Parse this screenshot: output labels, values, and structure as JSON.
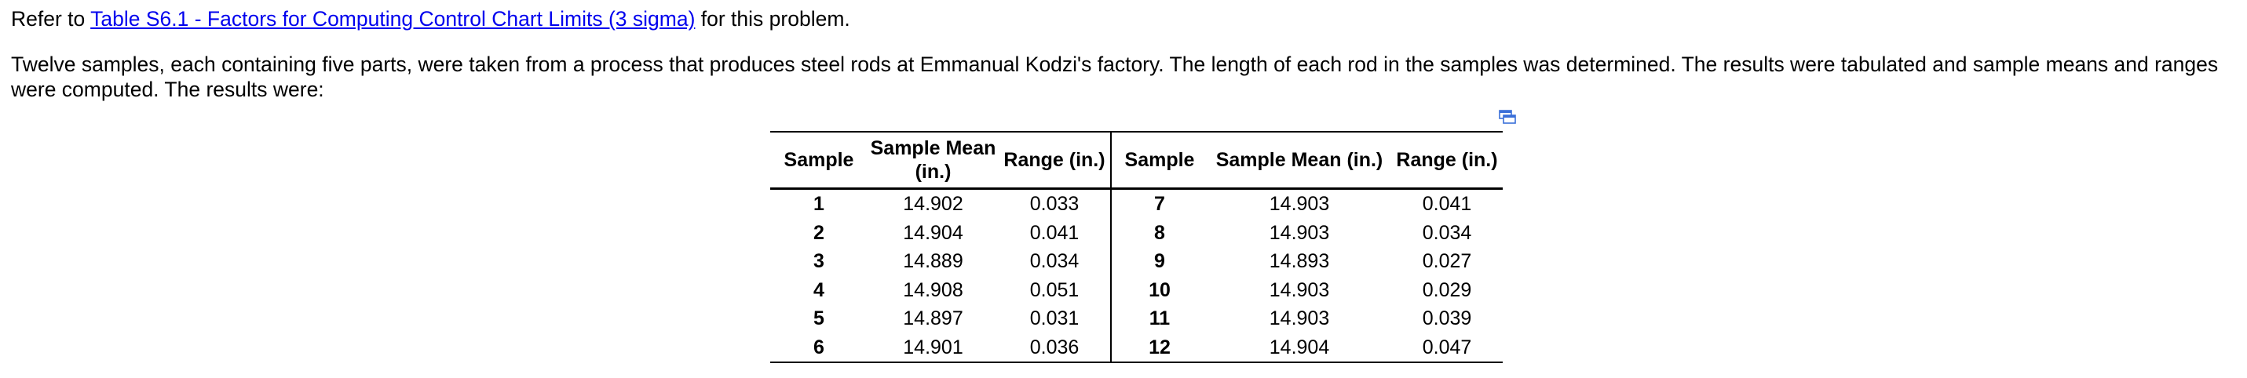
{
  "intro": {
    "prefix": "Refer to ",
    "link_text": "Table S6.1 - Factors for Computing Control Chart Limits (3 sigma)",
    "suffix": " for this problem."
  },
  "problem_text": "Twelve samples, each containing five parts, were taken from a process that produces steel rods at Emmanual Kodzi's factory. The length of each rod in the samples was determined. The results were tabulated and sample means and ranges were computed. The results were:",
  "popup_icon": "popup-window-icon",
  "table": {
    "headers": [
      "Sample",
      "Sample Mean (in.)",
      "Range (in.)",
      "Sample",
      "Sample Mean (in.)",
      "Range (in.)"
    ],
    "rows": [
      [
        "1",
        "14.902",
        "0.033",
        "7",
        "14.903",
        "0.041"
      ],
      [
        "2",
        "14.904",
        "0.041",
        "8",
        "14.903",
        "0.034"
      ],
      [
        "3",
        "14.889",
        "0.034",
        "9",
        "14.893",
        "0.027"
      ],
      [
        "4",
        "14.908",
        "0.051",
        "10",
        "14.903",
        "0.029"
      ],
      [
        "5",
        "14.897",
        "0.031",
        "11",
        "14.903",
        "0.039"
      ],
      [
        "6",
        "14.901",
        "0.036",
        "12",
        "14.904",
        "0.047"
      ]
    ]
  }
}
